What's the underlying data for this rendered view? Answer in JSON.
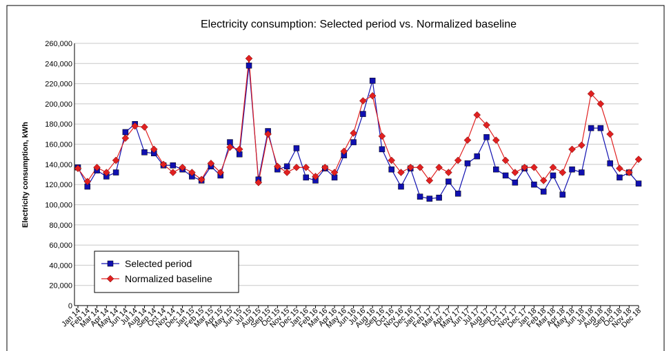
{
  "chart_data": {
    "type": "line",
    "title": "Electricity consumption: Selected period vs. Normalized baseline",
    "y_label": "Electricity consumption, kWh",
    "categories": [
      "Jan 14",
      "Feb 14",
      "Mar 14",
      "Apr 14",
      "May 14",
      "Jun 14",
      "Jul 14",
      "Aug 14",
      "Sep 14",
      "Oct 14",
      "Nov 14",
      "Dec 14",
      "Jan 15",
      "Feb 15",
      "Mar 15",
      "Apr 15",
      "May 15",
      "Jun 15",
      "Jul 15",
      "Aug 15",
      "Sep 15",
      "Oct 15",
      "Nov 15",
      "Dec 15",
      "Jan 16",
      "Feb 16",
      "Mar 16",
      "Apr 16",
      "May 16",
      "Jun 16",
      "Jul 16",
      "Aug 16",
      "Sep 16",
      "Oct 16",
      "Nov 16",
      "Dec 16",
      "Jan 17",
      "Feb 17",
      "Mar 17",
      "Apr 17",
      "May 17",
      "Jun 17",
      "Jul 17",
      "Aug 17",
      "Sep 17",
      "Oct 17",
      "Nov 17",
      "Dec 17",
      "Jan 18",
      "Feb 18",
      "Mar 18",
      "Apr 18",
      "May 18",
      "Jun 18",
      "Jul 18",
      "Aug 18",
      "Sep 18",
      "Oct 18",
      "Nov 18",
      "Dec 18"
    ],
    "series": [
      {
        "name": "Selected period",
        "color": "#1010b0",
        "marker": "square",
        "values": [
          137000,
          118000,
          134000,
          128000,
          132000,
          172000,
          180000,
          152000,
          151000,
          139000,
          139000,
          135000,
          128000,
          124000,
          138000,
          129000,
          162000,
          150000,
          238000,
          125000,
          173000,
          135000,
          138000,
          156000,
          127000,
          124000,
          136000,
          127000,
          149000,
          162000,
          190000,
          223000,
          155000,
          135000,
          118000,
          136000,
          108000,
          106000,
          107000,
          123000,
          111000,
          141000,
          148000,
          167000,
          135000,
          129000,
          122000,
          136000,
          120000,
          113000,
          129000,
          110000,
          135000,
          132000,
          176000,
          176000,
          141000,
          127000,
          132000,
          121000
        ]
      },
      {
        "name": "Normalized baseline",
        "color": "#e02020",
        "marker": "diamond",
        "values": [
          136000,
          123000,
          137000,
          132000,
          144000,
          166000,
          178000,
          177000,
          155000,
          140000,
          132000,
          137000,
          132000,
          125000,
          141000,
          132000,
          157000,
          155000,
          245000,
          122000,
          170000,
          138000,
          132000,
          137000,
          137000,
          128000,
          137000,
          132000,
          153000,
          171000,
          203000,
          208000,
          168000,
          144000,
          132000,
          137000,
          137000,
          124000,
          137000,
          132000,
          144000,
          164000,
          189000,
          179000,
          164000,
          144000,
          132000,
          137000,
          137000,
          124000,
          137000,
          132000,
          155000,
          159000,
          210000,
          200000,
          170000,
          136000,
          132000,
          145000
        ]
      }
    ],
    "ylim": [
      0,
      260000
    ],
    "yticks": [
      0,
      {
        "value": 20000,
        "label": "20,000"
      },
      {
        "value": 40000,
        "label": "40,000"
      },
      {
        "value": 60000,
        "label": "60,000"
      },
      {
        "value": 80000,
        "label": "80,000"
      },
      {
        "value": 100000,
        "label": "100,000"
      },
      {
        "value": 120000,
        "label": "120,000"
      },
      {
        "value": 140000,
        "label": "140,000"
      },
      {
        "value": 160000,
        "label": "160,000"
      },
      {
        "value": 180000,
        "label": "180,000"
      },
      {
        "value": 200000,
        "label": "200,000"
      },
      {
        "value": 220000,
        "label": "220,000"
      },
      {
        "value": 240000,
        "label": "240,000"
      },
      {
        "value": 260000,
        "label": "260,000"
      }
    ],
    "grid": true,
    "legend_position": "lower left"
  }
}
